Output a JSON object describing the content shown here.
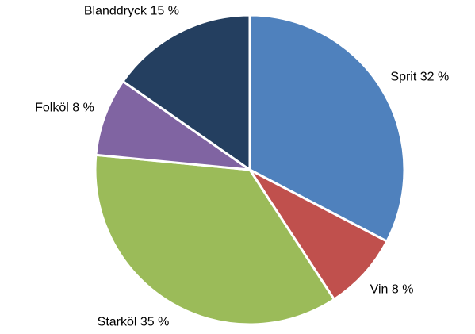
{
  "chart_data": {
    "type": "pie",
    "categories": [
      "Sprit",
      "Vin",
      "Starköl",
      "Folköl",
      "Blanddryck"
    ],
    "values": [
      32,
      8,
      35,
      8,
      15
    ],
    "value_labels": [
      "32 %",
      "8 %",
      "35 %",
      "8 %",
      "15 %"
    ],
    "colors": [
      "#4f81bd",
      "#c0504d",
      "#9bbb59",
      "#8064a2",
      "#243f60"
    ]
  }
}
